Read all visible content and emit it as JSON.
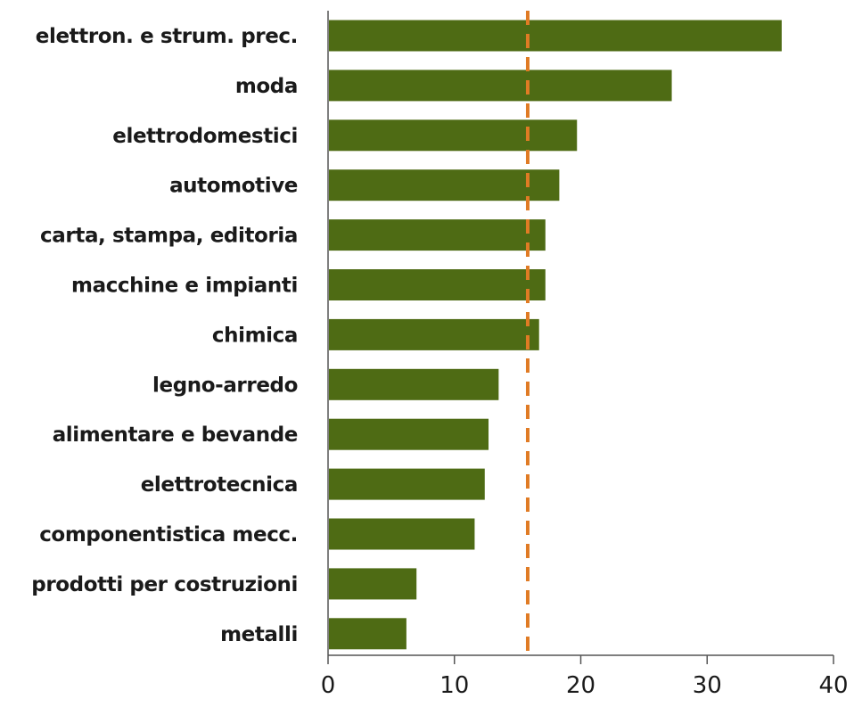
{
  "chart_data": {
    "type": "bar",
    "orientation": "horizontal",
    "categories": [
      "elettron. e strum. prec.",
      "moda",
      "elettrodomestici",
      "automotive",
      "carta, stampa, editoria",
      "macchine e impianti",
      "chimica",
      "legno-arredo",
      "alimentare e bevande",
      "elettrotecnica",
      "componentistica mecc.",
      "prodotti per costruzioni",
      "metalli"
    ],
    "values": [
      35.9,
      27.2,
      19.7,
      18.3,
      17.2,
      17.2,
      16.7,
      13.5,
      12.7,
      12.4,
      11.6,
      7.0,
      6.2
    ],
    "xlim": [
      0,
      40
    ],
    "xticks": [
      0,
      10,
      20,
      30,
      40
    ],
    "reference_line": {
      "value": 15.8,
      "style": "dashed",
      "color": "#e07b24"
    },
    "bar_color": "#4e6b14",
    "title": "",
    "xlabel": "",
    "ylabel": "",
    "grid": false,
    "legend": "none"
  }
}
